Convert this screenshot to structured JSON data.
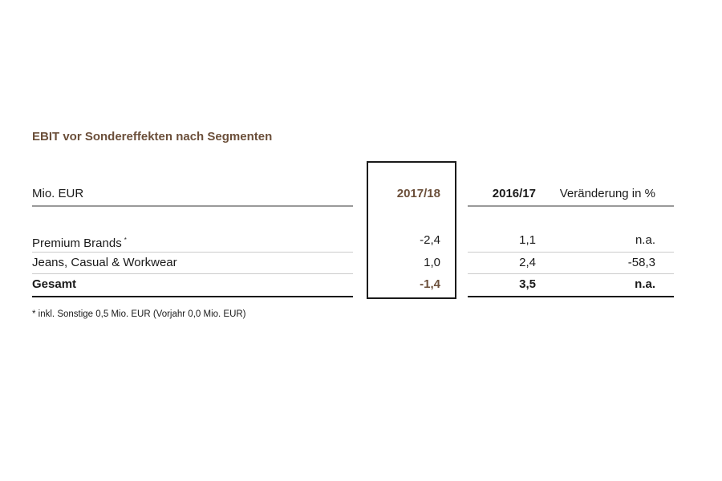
{
  "title": "EBIT vor Sondereffekten nach Segmenten",
  "table": {
    "header": {
      "label": "Mio. EUR",
      "col1": "2017/18",
      "col2": "2016/17",
      "col3": "Veränderung in %"
    },
    "rows": [
      {
        "label": "Premium Brands",
        "note": "*",
        "col1": "-2,4",
        "col2": "1,1",
        "col3": "n.a."
      },
      {
        "label": "Jeans, Casual & Workwear",
        "col1": "1,0",
        "col2": "2,4",
        "col3": "-58,3"
      },
      {
        "label": "Gesamt",
        "col1": "-1,4",
        "col2": "3,5",
        "col3": "n.a."
      }
    ]
  },
  "footnote": "* inkl. Sonstige 0,5 Mio. EUR (Vorjahr 0,0 Mio. EUR)"
}
